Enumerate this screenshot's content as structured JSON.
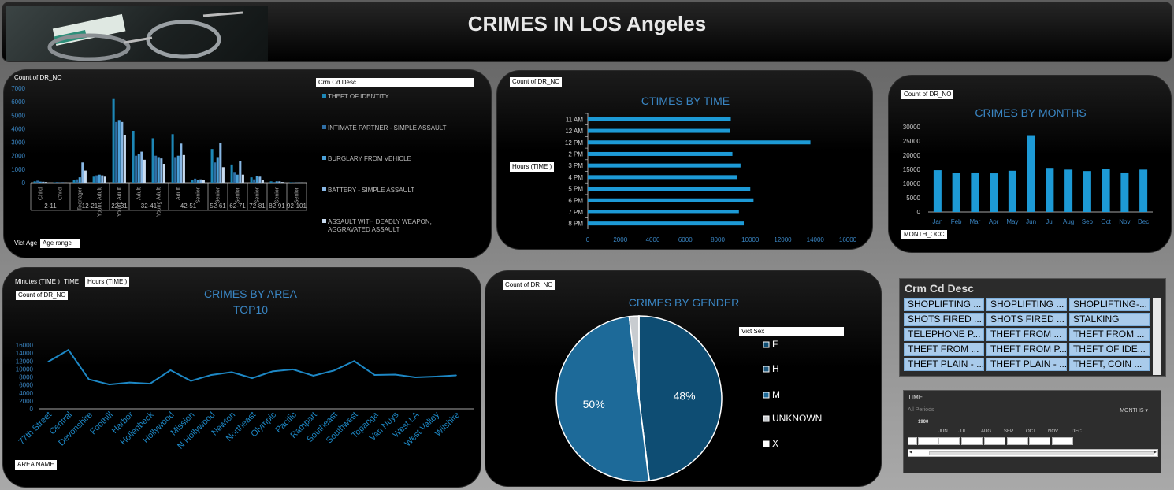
{
  "header": {
    "title": "CRIMES IN LOS Angeles",
    "image_icon": "handcuffs-icon"
  },
  "age_chart": {
    "value_tag": "Count of DR_NO",
    "legend_tag": "Crm Cd Desc",
    "axis_tags": [
      "Vict Age",
      "Age range"
    ],
    "y_ticks": [
      "0",
      "1000",
      "2000",
      "3000",
      "4000",
      "5000",
      "6000",
      "7000"
    ],
    "colors": [
      "#1d87b6",
      "#2f6fa6",
      "#4ba1d9",
      "#88b7e4",
      "#c9dbef"
    ]
  },
  "time_chart": {
    "value_tag": "Count of DR_NO",
    "axis_tag": "Hours (TIME )",
    "title": "CTIMES BY TIME"
  },
  "month_chart": {
    "value_tag": "Count of DR_NO",
    "axis_tag": "MONTH_OCC",
    "title": "CRIMES BY MONTHS"
  },
  "area_chart": {
    "field_tags": [
      "Minutes (TIME )",
      "TIME",
      "Hours (TIME )"
    ],
    "value_tag": "Count of DR_NO",
    "axis_tag": "AREA NAME",
    "title_lines": [
      "CRIMES BY AREA",
      "TOP10"
    ]
  },
  "gender_chart": {
    "value_tag": "Count of DR_NO",
    "legend_tag": "Vict Sex",
    "title": "CRIMES BY GENDER"
  },
  "chart_data": [
    {
      "type": "bar",
      "title": "",
      "group_labels": [
        "2-11",
        "12-21",
        "22-31",
        "32-41",
        "42-51",
        "52-61",
        "62-71",
        "72-81",
        "82-91",
        "92-101"
      ],
      "categories": [
        "Child",
        "Child",
        "Teenager",
        "Young Adult",
        "Young Adult",
        "Adult",
        "Young Adult",
        "Adult",
        "Senior",
        "Senior",
        "Senior",
        "Senior",
        "Senior",
        "Senior"
      ],
      "series": [
        {
          "name": "THEFT OF IDENTITY",
          "values": [
            100,
            30,
            200,
            450,
            6200,
            3850,
            3300,
            3600,
            200,
            2500,
            1350,
            400,
            100,
            30
          ]
        },
        {
          "name": "INTIMATE PARTNER - SIMPLE ASSAULT",
          "values": [
            150,
            50,
            250,
            550,
            4500,
            2000,
            2000,
            1900,
            300,
            1500,
            800,
            250,
            50,
            20
          ]
        },
        {
          "name": "BURGLARY FROM VEHICLE",
          "values": [
            80,
            20,
            400,
            600,
            4650,
            2100,
            1900,
            2000,
            200,
            1900,
            600,
            500,
            100,
            10
          ]
        },
        {
          "name": "BATTERY - SIMPLE ASSAULT",
          "values": [
            70,
            30,
            1500,
            550,
            4500,
            2300,
            1800,
            2900,
            250,
            2950,
            1600,
            450,
            100,
            20
          ]
        },
        {
          "name": "ASSAULT WITH DEADLY WEAPON, AGGRAVATED ASSAULT",
          "values": [
            50,
            10,
            900,
            450,
            3500,
            1700,
            1400,
            2050,
            200,
            1150,
            600,
            200,
            50,
            10
          ]
        }
      ],
      "ylim": [
        0,
        7000
      ]
    },
    {
      "type": "bar",
      "title": "CTIMES BY TIME",
      "orientation": "horizontal",
      "categories": [
        "11 AM",
        "12 AM",
        "12 PM",
        "2 PM",
        "3 PM",
        "4 PM",
        "5 PM",
        "6 PM",
        "7 PM",
        "8 PM"
      ],
      "values": [
        8800,
        8750,
        13700,
        8900,
        9400,
        9200,
        10000,
        10200,
        9300,
        9600
      ],
      "xlim": [
        0,
        16000
      ],
      "x_ticks": [
        "0",
        "2000",
        "4000",
        "6000",
        "8000",
        "10000",
        "12000",
        "14000",
        "16000"
      ]
    },
    {
      "type": "bar",
      "title": "CRIMES BY MONTHS",
      "categories": [
        "Jan",
        "Feb",
        "Mar",
        "Apr",
        "May",
        "Jun",
        "Jul",
        "Aug",
        "Sep",
        "Oct",
        "Nov",
        "Dec"
      ],
      "values": [
        14700,
        13700,
        13900,
        13600,
        14500,
        26800,
        15500,
        14900,
        14400,
        15100,
        13900,
        14900
      ],
      "ylim": [
        0,
        30000
      ],
      "y_ticks": [
        "0",
        "5000",
        "10000",
        "15000",
        "20000",
        "25000",
        "30000"
      ]
    },
    {
      "type": "line",
      "title": "CRIMES BY AREA TOP10",
      "categories": [
        "77th Street",
        "Central",
        "Devonshire",
        "Foothill",
        "Harbor",
        "Hollenbeck",
        "Hollywood",
        "Mission",
        "N Hollywood",
        "Newton",
        "Northeast",
        "Olympic",
        "Pacific",
        "Rampart",
        "Southeast",
        "Southwest",
        "Topanga",
        "Van Nuys",
        "West LA",
        "West Valley",
        "Wilshire"
      ],
      "values": [
        11800,
        14800,
        7400,
        6100,
        6600,
        6300,
        9700,
        7000,
        8500,
        9200,
        7700,
        9400,
        9900,
        8300,
        9600,
        12000,
        8500,
        8600,
        7900,
        8100,
        8400
      ],
      "ylim": [
        0,
        16000
      ],
      "y_ticks": [
        "0",
        "2000",
        "4000",
        "6000",
        "8000",
        "10000",
        "12000",
        "14000",
        "16000"
      ]
    },
    {
      "type": "pie",
      "title": "CRIMES BY GENDER",
      "labels": [
        "F",
        "H",
        "M",
        "UNKNOWN",
        "X"
      ],
      "values": [
        48,
        0.1,
        50,
        1.9,
        0.01
      ],
      "slice_labels": [
        "48%",
        "",
        "50%",
        "",
        ""
      ],
      "colors": [
        "#0e4d73",
        "#205a7e",
        "#1d6a99",
        "#c8ccd0",
        "#ffffff"
      ]
    }
  ],
  "slicer": {
    "title": "Crm Cd Desc",
    "items": [
      "SHOPLIFTING ...",
      "SHOPLIFTING ...",
      "SHOPLIFTING-...",
      "SHOTS FIRED ...",
      "SHOTS FIRED ...",
      "STALKING",
      "TELEPHONE P...",
      "THEFT FROM ...",
      "THEFT FROM ...",
      "THEFT FROM ...",
      "THEFT FROM P...",
      "THEFT OF IDE...",
      "THEFT PLAIN - ...",
      "THEFT PLAIN - ...",
      "THEFT, COIN ..."
    ]
  },
  "timeline": {
    "title": "TIME",
    "periods": "All Periods",
    "level": "MONTHS",
    "year": "1900",
    "months": [
      "JUN",
      "JUL",
      "AUG",
      "SEP",
      "OCT",
      "NOV",
      "DEC"
    ]
  }
}
